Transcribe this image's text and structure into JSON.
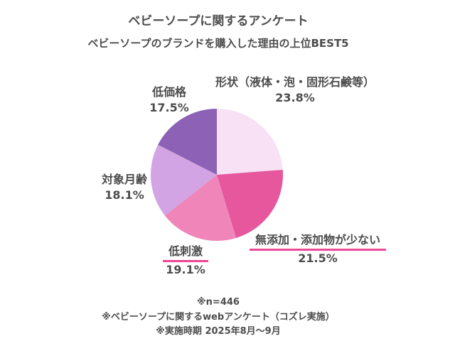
{
  "title": "ベビーソープに関するアンケート",
  "subtitle": "ベビーソープのブランドを購入した理由の上位BEST5",
  "chart_data": {
    "type": "pie",
    "title": "ベビーソープに関するアンケート",
    "subtitle": "ベビーソープのブランドを購入した理由の上位BEST5",
    "categories": [
      "形状（液体・泡・固形石鹸等）",
      "無添加・添加物が少ない",
      "低刺激",
      "対象月齢",
      "低価格"
    ],
    "values": [
      23.8,
      21.5,
      19.1,
      18.1,
      17.5
    ],
    "pct_labels": [
      "23.8%",
      "21.5%",
      "19.1%",
      "18.1%",
      "17.5%"
    ],
    "unit": "%",
    "colors": [
      "#F8E1F4",
      "#E6579E",
      "#EF85B9",
      "#D3A4E4",
      "#8D61B5"
    ],
    "start_angle_deg": 0,
    "direction": "clockwise",
    "legend_position": "outside-labels",
    "underlined_categories": [
      "無添加・添加物が少ない",
      "低刺激"
    ],
    "underline_color": "#ED4796",
    "text_color": "#4C4C4C"
  },
  "footer": {
    "line1": "※n=446",
    "line2": "※ベビーソープに関するwebアンケート（コズレ実施）",
    "line3": "※実施時期 2025年8月〜9月"
  }
}
